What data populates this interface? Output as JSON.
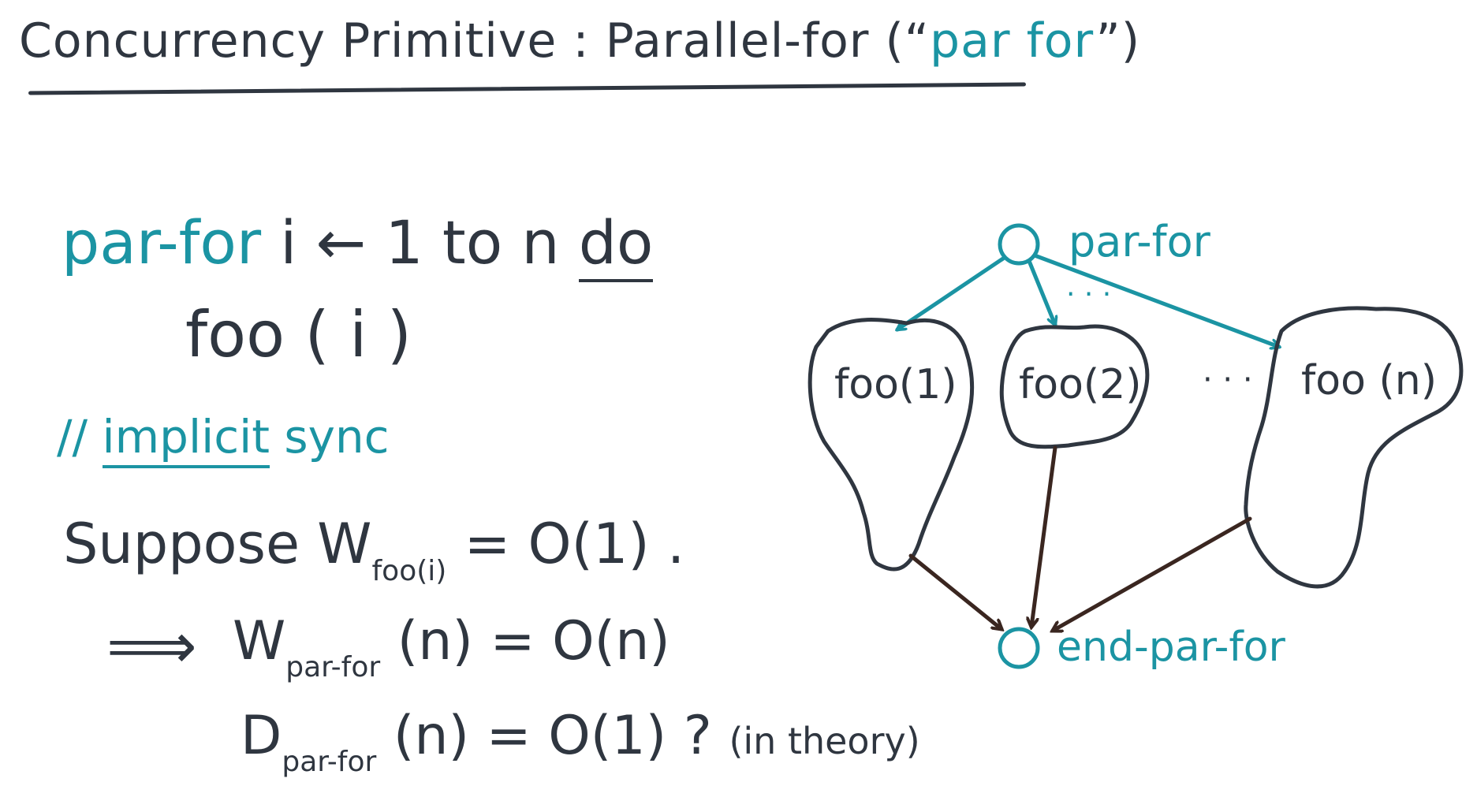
{
  "title": {
    "prefix": "Concurrency Primitive : Parallel-for (“",
    "keyword": "par for",
    "suffix": "”)"
  },
  "code": {
    "keyword": "par-for",
    "loop_rest": " i ← 1 to n ",
    "do": "do",
    "body": "foo ( i )"
  },
  "comment": {
    "slashes": "// ",
    "implicit": "implicit",
    "sync": " sync"
  },
  "analysis": {
    "suppose_text": "Suppose W",
    "suppose_sub": "foo(i)",
    "suppose_rhs": " = O(1) .",
    "implies": "⟹",
    "work_sym": "W",
    "work_sub": "par-for",
    "work_rhs": " (n) = O(n)",
    "depth_sym": "D",
    "depth_sub": "par-for",
    "depth_rhs": " (n) = O(1) ? ",
    "depth_note": "(in theory)"
  },
  "diagram": {
    "start_label": "par-for",
    "end_label": "end-par-for",
    "tasks": [
      "foo(1)",
      "foo(2)",
      "foo (n)"
    ],
    "ellipsis_mid": "· · ·",
    "ellipsis_top": "· · ·",
    "colors": {
      "teal": "#1b94a3",
      "ink": "#2f3640",
      "brown": "#3a2620"
    }
  }
}
